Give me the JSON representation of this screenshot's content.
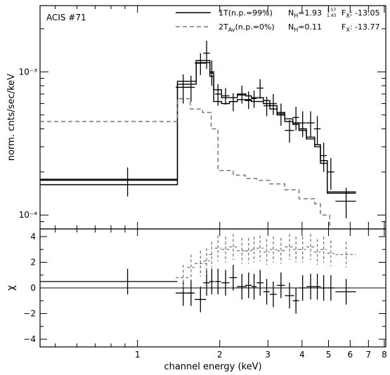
{
  "chart_data": [
    {
      "type": "line",
      "panel": "spectrum",
      "ylabel": "norm. cnts/sec/keV",
      "y_scale": "log",
      "ylim": [
        8e-05,
        0.0029
      ],
      "x_scale": "log",
      "xlim": [
        0.44,
        8.1
      ],
      "y_major_ticks": [
        0.0001,
        0.001
      ],
      "y_major_tick_labels": [
        "10⁻⁴",
        "10⁻³"
      ],
      "annotation": "ACIS #71",
      "legend_placement": "top-right",
      "legend": [
        {
          "label": "1T(n.p.=99%)",
          "style": "solid",
          "nh_label": "N",
          "nh_sub": "H",
          "nh_value": "=1.93",
          "nh_err_hi": "3.57",
          "nh_err_lo": "1.43",
          "fx_label": "F",
          "fx_sub": "X",
          "fx_value": ": -13.05"
        },
        {
          "label_main": "2T",
          "label_sub": "Av",
          "label_rest": "(n.p.=0%)",
          "style": "dashed",
          "nh_label": "N",
          "nh_sub": "H",
          "nh_value": "=0.11",
          "fx_label": "F",
          "fx_sub": "X",
          "fx_value": ": -13.77"
        }
      ],
      "data_points": {
        "x": [
          0.92,
          1.47,
          1.57,
          1.7,
          1.79,
          1.87,
          1.97,
          2.1,
          2.24,
          2.41,
          2.55,
          2.67,
          2.81,
          2.97,
          3.14,
          3.35,
          3.6,
          3.8,
          4.02,
          4.3,
          4.55,
          4.8,
          5.1,
          5.8
        ],
        "y": [
          0.000175,
          0.00078,
          0.00078,
          0.00115,
          0.00135,
          0.001,
          0.0007,
          0.00068,
          0.00062,
          0.0007,
          0.00064,
          0.00065,
          0.00077,
          0.00058,
          0.0006,
          0.00051,
          0.00039,
          0.00048,
          0.00044,
          0.00044,
          0.0004,
          0.00026,
          0.0002,
          0.000125
        ],
        "yerr": [
          4e-05,
          0.00018,
          0.00016,
          0.0002,
          0.0003,
          0.0002,
          0.00012,
          9e-05,
          9e-05,
          0.0001,
          9e-05,
          9e-05,
          0.00012,
          9e-05,
          0.0001,
          9e-05,
          7e-05,
          9e-05,
          9e-05,
          9e-05,
          9e-05,
          6e-05,
          5e-05,
          3e-05
        ],
        "xerr_lo": [
          0.48,
          0.09,
          0.05,
          0.08,
          0.05,
          0.04,
          0.05,
          0.07,
          0.07,
          0.1,
          0.07,
          0.06,
          0.08,
          0.08,
          0.09,
          0.11,
          0.14,
          0.1,
          0.12,
          0.15,
          0.13,
          0.13,
          0.15,
          0.5
        ],
        "xerr_hi": [
          0.48,
          0.09,
          0.05,
          0.08,
          0.05,
          0.04,
          0.05,
          0.07,
          0.07,
          0.1,
          0.07,
          0.06,
          0.08,
          0.08,
          0.09,
          0.11,
          0.14,
          0.1,
          0.12,
          0.15,
          0.13,
          0.13,
          0.15,
          0.5
        ]
      },
      "series": [
        {
          "style": "solid",
          "x": [
            0.44,
            1.4,
            1.4,
            1.64,
            1.64,
            1.84,
            1.84,
            1.9,
            1.9,
            2.03,
            2.03,
            2.17,
            2.17,
            2.32,
            2.32,
            2.48,
            2.48,
            2.61,
            2.61,
            2.73,
            2.73,
            2.89,
            2.89,
            3.05,
            3.05,
            3.24,
            3.24,
            3.46,
            3.46,
            3.7,
            3.7,
            3.9,
            3.9,
            4.15,
            4.15,
            4.45,
            4.45,
            4.67,
            4.67,
            4.95,
            4.95,
            5.3,
            5.3,
            6.3
          ],
          "y": [
            0.000178,
            0.000178,
            0.00086,
            0.00086,
            0.00116,
            0.00116,
            0.00093,
            0.00093,
            0.00075,
            0.00075,
            0.00066,
            0.00066,
            0.00066,
            0.00066,
            0.00069,
            0.00069,
            0.00068,
            0.00068,
            0.00066,
            0.00066,
            0.00066,
            0.00066,
            0.00063,
            0.00063,
            0.00058,
            0.00058,
            0.00052,
            0.00052,
            0.00047,
            0.00047,
            0.00044,
            0.00044,
            0.0004,
            0.0004,
            0.00035,
            0.00035,
            0.00031,
            0.00031,
            0.00024,
            0.00024,
            0.000145,
            0.000145,
            0.000145,
            0.000145
          ]
        },
        {
          "style": "solid",
          "x": [
            0.44,
            1.4,
            1.4,
            1.64,
            1.64,
            1.84,
            1.84,
            1.9,
            1.9,
            2.03,
            2.03,
            2.17,
            2.17,
            2.32,
            2.32,
            2.48,
            2.48,
            2.61,
            2.61,
            2.73,
            2.73,
            2.89,
            2.89,
            3.05,
            3.05,
            3.24,
            3.24,
            3.46,
            3.46,
            3.7,
            3.7,
            3.9,
            3.9,
            4.15,
            4.15,
            4.45,
            4.45,
            4.67,
            4.67,
            4.95,
            4.95,
            5.3,
            5.3,
            6.3
          ],
          "y": [
            0.000163,
            0.000163,
            0.00082,
            0.00082,
            0.0012,
            0.0012,
            0.00098,
            0.00098,
            0.00062,
            0.00062,
            0.0006,
            0.0006,
            0.00062,
            0.00062,
            0.00064,
            0.00064,
            0.00063,
            0.00063,
            0.00062,
            0.00062,
            0.00062,
            0.00062,
            0.0006,
            0.0006,
            0.00055,
            0.00055,
            0.0005,
            0.0005,
            0.00045,
            0.00045,
            0.00043,
            0.00043,
            0.00039,
            0.00039,
            0.00034,
            0.00034,
            0.0003,
            0.0003,
            0.00023,
            0.00023,
            0.000142,
            0.000142,
            0.000142,
            0.000142
          ]
        },
        {
          "style": "dashed",
          "x": [
            0.44,
            1.4,
            1.4,
            1.56,
            1.56,
            1.73,
            1.73,
            1.86,
            1.86,
            1.97,
            1.97,
            2.24,
            2.24,
            2.48,
            2.48,
            2.73,
            2.73,
            3.05,
            3.05,
            3.46,
            3.46,
            3.9,
            3.9,
            4.45,
            4.45,
            4.67,
            4.67,
            5.05,
            5.05
          ],
          "y": [
            0.00045,
            0.00045,
            0.00065,
            0.00065,
            0.00055,
            0.00055,
            0.00052,
            0.00052,
            0.0004,
            0.0004,
            0.000205,
            0.000205,
            0.00019,
            0.00019,
            0.00018,
            0.00018,
            0.000175,
            0.000175,
            0.000165,
            0.000165,
            0.00015,
            0.00015,
            0.00013,
            0.00013,
            0.00012,
            0.00012,
            0.0001,
            0.0001,
            8e-05
          ]
        }
      ]
    },
    {
      "type": "line",
      "panel": "residuals",
      "ylabel": "χ",
      "xlabel": "channel energy (keV)",
      "x_scale": "log",
      "xlim": [
        0.44,
        8.1
      ],
      "ylim": [
        -4.6,
        4.6
      ],
      "y_ticks": [
        -4,
        -2,
        0,
        2,
        4
      ],
      "y_tick_labels": [
        "−4",
        "−2",
        "0",
        "2",
        "4"
      ],
      "x_ticks": [
        1,
        2,
        3,
        4,
        5,
        6,
        7,
        8
      ],
      "x_tick_labels": [
        "1",
        "2",
        "3",
        "4",
        "5",
        "6",
        "7",
        "8"
      ],
      "zero_line": 0,
      "series": [
        {
          "style": "solid",
          "x": [
            0.92,
            1.47,
            1.57,
            1.7,
            1.79,
            1.87,
            1.97,
            2.1,
            2.24,
            2.41,
            2.55,
            2.67,
            2.81,
            2.97,
            3.14,
            3.35,
            3.6,
            3.8,
            4.02,
            4.3,
            4.55,
            4.8,
            5.1,
            5.8
          ],
          "y": [
            0.5,
            -0.4,
            -0.4,
            -0.9,
            0.4,
            0.5,
            0.5,
            0.4,
            0.8,
            0.1,
            0.2,
            0.1,
            0.4,
            -0.3,
            -0.5,
            0.2,
            -0.6,
            -1.0,
            0.0,
            0.1,
            0.1,
            0.0,
            0.0,
            -0.3
          ],
          "yerr": [
            1.0,
            1.0,
            1.0,
            1.0,
            1.0,
            1.0,
            1.0,
            1.0,
            1.0,
            1.0,
            1.0,
            1.0,
            1.0,
            1.0,
            1.0,
            1.0,
            1.0,
            1.0,
            1.0,
            1.0,
            1.0,
            1.0,
            1.0,
            1.0
          ],
          "xerr_lo": [
            0.48,
            0.09,
            0.05,
            0.08,
            0.05,
            0.04,
            0.05,
            0.07,
            0.07,
            0.1,
            0.07,
            0.06,
            0.08,
            0.08,
            0.09,
            0.11,
            0.14,
            0.1,
            0.12,
            0.15,
            0.13,
            0.13,
            0.15,
            0.5
          ],
          "xerr_hi": [
            0.48,
            0.09,
            0.05,
            0.08,
            0.05,
            0.04,
            0.05,
            0.07,
            0.07,
            0.1,
            0.07,
            0.06,
            0.08,
            0.08,
            0.09,
            0.11,
            0.14,
            0.1,
            0.12,
            0.15,
            0.13,
            0.13,
            0.15,
            0.5
          ]
        },
        {
          "style": "dashed",
          "x": [
            1.47,
            1.57,
            1.7,
            1.79,
            1.87,
            1.97,
            2.1,
            2.24,
            2.41,
            2.55,
            2.67,
            2.81,
            2.97,
            3.14,
            3.35,
            3.6,
            3.8,
            4.02,
            4.3,
            4.55,
            4.8,
            5.1,
            5.8
          ],
          "y": [
            0.8,
            1.6,
            1.9,
            2.1,
            2.6,
            3.1,
            3.0,
            3.2,
            2.9,
            2.9,
            3.0,
            3.1,
            2.8,
            3.0,
            2.9,
            3.2,
            3.0,
            3.0,
            3.2,
            2.8,
            3.0,
            2.7,
            2.6
          ],
          "xerr_lo": [
            0.09,
            0.05,
            0.08,
            0.05,
            0.04,
            0.05,
            0.07,
            0.07,
            0.1,
            0.07,
            0.06,
            0.08,
            0.08,
            0.09,
            0.11,
            0.14,
            0.1,
            0.12,
            0.15,
            0.13,
            0.13,
            0.15,
            0.5
          ],
          "xerr_hi": [
            0.09,
            0.05,
            0.08,
            0.05,
            0.04,
            0.05,
            0.07,
            0.07,
            0.1,
            0.07,
            0.06,
            0.08,
            0.08,
            0.09,
            0.11,
            0.14,
            0.1,
            0.12,
            0.15,
            0.13,
            0.13,
            0.15,
            0.5
          ],
          "yerr": [
            1.0,
            1.0,
            1.0,
            1.0,
            1.0,
            1.0,
            1.0,
            1.0,
            1.0,
            1.0,
            1.0,
            1.0,
            1.0,
            1.0,
            1.0,
            1.0,
            1.0,
            1.0,
            1.0,
            1.0,
            1.0,
            1.0,
            1.0
          ]
        }
      ]
    }
  ]
}
